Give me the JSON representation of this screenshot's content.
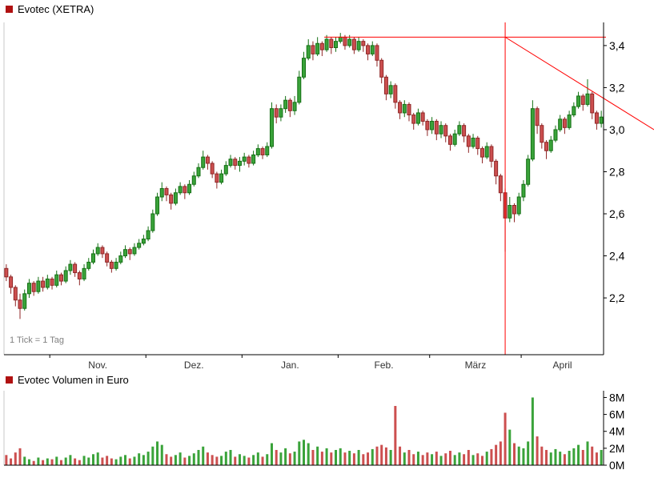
{
  "price_chart": {
    "title": "Evotec (XETRA)",
    "tick_note": "1 Tick = 1 Tag"
  },
  "volume_chart": {
    "title": "Evotec Volumen in Euro"
  },
  "colors": {
    "up_fill": "#3aa33a",
    "up_border": "#147014",
    "down_fill": "#cc4f4f",
    "down_border": "#8f2626",
    "trendline": "#ff0000",
    "axis": "#000000",
    "tick_label": "#000000",
    "month_label": "#333333",
    "note": "#808080",
    "legend_bullet": "#b01111",
    "frame": "#c8c8c8"
  },
  "chart_data": {
    "type": "candlestick",
    "title": "Evotec (XETRA)",
    "tick_note": "1 Tick = 1 Tag",
    "price_axis": {
      "side": "right",
      "min": 1.93,
      "max": 3.51,
      "ticks": [
        {
          "label": "3,4",
          "value": 3.4
        },
        {
          "label": "3,2",
          "value": 3.2
        },
        {
          "label": "3,0",
          "value": 3.0
        },
        {
          "label": "2,8",
          "value": 2.8
        },
        {
          "label": "2,6",
          "value": 2.6
        },
        {
          "label": "2,4",
          "value": 2.4
        },
        {
          "label": "2,2",
          "value": 2.2
        }
      ]
    },
    "months": [
      {
        "label": "Nov.",
        "start_index": 10
      },
      {
        "label": "Dez.",
        "start_index": 31
      },
      {
        "label": "Jan.",
        "start_index": 52
      },
      {
        "label": "Feb.",
        "start_index": 73
      },
      {
        "label": "März",
        "start_index": 93
      },
      {
        "label": "April",
        "start_index": 113
      }
    ],
    "candles": [
      [
        2.34,
        2.36,
        2.28,
        2.3
      ],
      [
        2.3,
        2.31,
        2.22,
        2.25
      ],
      [
        2.25,
        2.26,
        2.16,
        2.19
      ],
      [
        2.19,
        2.22,
        2.1,
        2.15
      ],
      [
        2.15,
        2.24,
        2.14,
        2.22
      ],
      [
        2.22,
        2.29,
        2.2,
        2.27
      ],
      [
        2.27,
        2.28,
        2.21,
        2.23
      ],
      [
        2.23,
        2.3,
        2.22,
        2.28
      ],
      [
        2.28,
        2.3,
        2.23,
        2.25
      ],
      [
        2.25,
        2.31,
        2.24,
        2.29
      ],
      [
        2.29,
        2.3,
        2.24,
        2.26
      ],
      [
        2.26,
        2.33,
        2.25,
        2.31
      ],
      [
        2.31,
        2.32,
        2.26,
        2.28
      ],
      [
        2.28,
        2.35,
        2.27,
        2.33
      ],
      [
        2.33,
        2.38,
        2.31,
        2.36
      ],
      [
        2.36,
        2.37,
        2.3,
        2.32
      ],
      [
        2.32,
        2.33,
        2.26,
        2.29
      ],
      [
        2.29,
        2.36,
        2.28,
        2.34
      ],
      [
        2.34,
        2.39,
        2.33,
        2.37
      ],
      [
        2.37,
        2.43,
        2.36,
        2.41
      ],
      [
        2.41,
        2.46,
        2.4,
        2.44
      ],
      [
        2.44,
        2.45,
        2.39,
        2.41
      ],
      [
        2.41,
        2.42,
        2.35,
        2.37
      ],
      [
        2.37,
        2.38,
        2.32,
        2.34
      ],
      [
        2.34,
        2.39,
        2.33,
        2.37
      ],
      [
        2.37,
        2.42,
        2.36,
        2.4
      ],
      [
        2.4,
        2.45,
        2.39,
        2.43
      ],
      [
        2.43,
        2.44,
        2.38,
        2.41
      ],
      [
        2.41,
        2.46,
        2.4,
        2.44
      ],
      [
        2.44,
        2.48,
        2.43,
        2.46
      ],
      [
        2.46,
        2.5,
        2.45,
        2.48
      ],
      [
        2.48,
        2.54,
        2.47,
        2.52
      ],
      [
        2.52,
        2.62,
        2.51,
        2.6
      ],
      [
        2.6,
        2.7,
        2.59,
        2.68
      ],
      [
        2.68,
        2.75,
        2.66,
        2.72
      ],
      [
        2.72,
        2.73,
        2.66,
        2.69
      ],
      [
        2.69,
        2.7,
        2.62,
        2.65
      ],
      [
        2.65,
        2.72,
        2.64,
        2.7
      ],
      [
        2.7,
        2.75,
        2.69,
        2.73
      ],
      [
        2.73,
        2.74,
        2.67,
        2.7
      ],
      [
        2.7,
        2.76,
        2.69,
        2.74
      ],
      [
        2.74,
        2.8,
        2.73,
        2.78
      ],
      [
        2.78,
        2.84,
        2.77,
        2.82
      ],
      [
        2.82,
        2.9,
        2.81,
        2.87
      ],
      [
        2.87,
        2.88,
        2.81,
        2.84
      ],
      [
        2.84,
        2.85,
        2.77,
        2.79
      ],
      [
        2.79,
        2.8,
        2.72,
        2.75
      ],
      [
        2.75,
        2.81,
        2.74,
        2.79
      ],
      [
        2.79,
        2.85,
        2.78,
        2.83
      ],
      [
        2.83,
        2.88,
        2.82,
        2.86
      ],
      [
        2.86,
        2.87,
        2.81,
        2.83
      ],
      [
        2.83,
        2.87,
        2.8,
        2.85
      ],
      [
        2.85,
        2.89,
        2.83,
        2.87
      ],
      [
        2.87,
        2.88,
        2.82,
        2.84
      ],
      [
        2.84,
        2.9,
        2.83,
        2.88
      ],
      [
        2.88,
        2.93,
        2.87,
        2.91
      ],
      [
        2.91,
        2.92,
        2.86,
        2.88
      ],
      [
        2.88,
        2.94,
        2.87,
        2.92
      ],
      [
        2.92,
        3.13,
        2.91,
        3.1
      ],
      [
        3.1,
        3.12,
        3.03,
        3.06
      ],
      [
        3.06,
        3.12,
        3.04,
        3.1
      ],
      [
        3.1,
        3.16,
        3.08,
        3.14
      ],
      [
        3.14,
        3.15,
        3.06,
        3.09
      ],
      [
        3.09,
        3.16,
        3.07,
        3.13
      ],
      [
        3.13,
        3.28,
        3.12,
        3.25
      ],
      [
        3.25,
        3.37,
        3.24,
        3.34
      ],
      [
        3.34,
        3.43,
        3.33,
        3.4
      ],
      [
        3.4,
        3.42,
        3.33,
        3.36
      ],
      [
        3.36,
        3.44,
        3.35,
        3.41
      ],
      [
        3.41,
        3.42,
        3.35,
        3.38
      ],
      [
        3.38,
        3.45,
        3.37,
        3.43
      ],
      [
        3.43,
        3.44,
        3.36,
        3.39
      ],
      [
        3.39,
        3.44,
        3.37,
        3.42
      ],
      [
        3.42,
        3.46,
        3.41,
        3.44
      ],
      [
        3.44,
        3.45,
        3.38,
        3.4
      ],
      [
        3.4,
        3.45,
        3.39,
        3.43
      ],
      [
        3.43,
        3.44,
        3.36,
        3.38
      ],
      [
        3.38,
        3.44,
        3.37,
        3.42
      ],
      [
        3.42,
        3.43,
        3.37,
        3.4
      ],
      [
        3.4,
        3.41,
        3.33,
        3.36
      ],
      [
        3.36,
        3.42,
        3.35,
        3.4
      ],
      [
        3.4,
        3.41,
        3.3,
        3.33
      ],
      [
        3.33,
        3.34,
        3.22,
        3.25
      ],
      [
        3.25,
        3.26,
        3.14,
        3.17
      ],
      [
        3.17,
        3.23,
        3.15,
        3.21
      ],
      [
        3.21,
        3.22,
        3.1,
        3.13
      ],
      [
        3.13,
        3.14,
        3.05,
        3.08
      ],
      [
        3.08,
        3.14,
        3.06,
        3.12
      ],
      [
        3.12,
        3.13,
        3.04,
        3.07
      ],
      [
        3.07,
        3.08,
        3.0,
        3.03
      ],
      [
        3.03,
        3.1,
        3.02,
        3.08
      ],
      [
        3.08,
        3.09,
        3.02,
        3.04
      ],
      [
        3.04,
        3.05,
        2.97,
        3.0
      ],
      [
        3.0,
        3.06,
        2.98,
        3.04
      ],
      [
        3.04,
        3.05,
        2.95,
        2.98
      ],
      [
        2.98,
        3.04,
        2.96,
        3.02
      ],
      [
        3.02,
        3.03,
        2.94,
        2.97
      ],
      [
        2.97,
        2.98,
        2.9,
        2.93
      ],
      [
        2.93,
        3.0,
        2.92,
        2.98
      ],
      [
        2.98,
        3.04,
        2.97,
        3.02
      ],
      [
        3.02,
        3.03,
        2.94,
        2.97
      ],
      [
        2.97,
        2.98,
        2.89,
        2.92
      ],
      [
        2.92,
        2.98,
        2.91,
        2.96
      ],
      [
        2.96,
        2.97,
        2.88,
        2.91
      ],
      [
        2.91,
        2.92,
        2.84,
        2.87
      ],
      [
        2.87,
        2.94,
        2.86,
        2.92
      ],
      [
        2.92,
        2.93,
        2.82,
        2.85
      ],
      [
        2.85,
        2.86,
        2.74,
        2.78
      ],
      [
        2.78,
        2.79,
        2.66,
        2.7
      ],
      [
        2.7,
        2.72,
        2.42,
        2.58
      ],
      [
        2.58,
        2.68,
        2.56,
        2.64
      ],
      [
        2.64,
        2.65,
        2.56,
        2.6
      ],
      [
        2.6,
        2.7,
        2.59,
        2.68
      ],
      [
        2.68,
        2.76,
        2.66,
        2.74
      ],
      [
        2.74,
        2.88,
        2.73,
        2.86
      ],
      [
        2.86,
        3.14,
        2.85,
        3.1
      ],
      [
        3.1,
        3.11,
        2.98,
        3.02
      ],
      [
        3.02,
        3.03,
        2.91,
        2.94
      ],
      [
        2.94,
        2.95,
        2.86,
        2.9
      ],
      [
        2.9,
        2.97,
        2.89,
        2.95
      ],
      [
        2.95,
        3.02,
        2.94,
        3.0
      ],
      [
        3.0,
        3.07,
        2.99,
        3.05
      ],
      [
        3.05,
        3.06,
        2.98,
        3.01
      ],
      [
        3.01,
        3.09,
        3.0,
        3.07
      ],
      [
        3.07,
        3.13,
        3.06,
        3.11
      ],
      [
        3.11,
        3.18,
        3.1,
        3.16
      ],
      [
        3.16,
        3.17,
        3.09,
        3.12
      ],
      [
        3.12,
        3.24,
        3.11,
        3.17
      ],
      [
        3.17,
        3.18,
        3.05,
        3.08
      ],
      [
        3.08,
        3.09,
        3.0,
        3.03
      ],
      [
        3.03,
        3.09,
        3.01,
        3.06
      ]
    ],
    "volume": {
      "title": "Evotec Volumen in Euro",
      "unit": "EUR",
      "axis": {
        "min": 0,
        "max": 8.8,
        "ticks": [
          {
            "label": "8M",
            "value": 8
          },
          {
            "label": "6M",
            "value": 6
          },
          {
            "label": "4M",
            "value": 4
          },
          {
            "label": "2M",
            "value": 2
          },
          {
            "label": "0M",
            "value": 0
          }
        ]
      },
      "values": [
        1.2,
        0.8,
        1.5,
        2.0,
        1.0,
        0.7,
        0.5,
        0.9,
        0.6,
        0.8,
        0.7,
        1.0,
        0.6,
        0.9,
        1.2,
        0.8,
        0.6,
        1.1,
        0.9,
        1.3,
        1.5,
        0.9,
        1.1,
        0.8,
        0.7,
        1.0,
        1.2,
        0.8,
        1.0,
        1.4,
        1.2,
        1.6,
        2.2,
        2.8,
        2.4,
        1.3,
        1.0,
        1.2,
        1.5,
        0.9,
        1.1,
        1.4,
        1.8,
        2.2,
        1.5,
        1.2,
        1.0,
        1.1,
        1.6,
        1.8,
        1.0,
        1.3,
        1.1,
        0.9,
        1.2,
        1.5,
        1.0,
        1.3,
        2.6,
        1.8,
        1.5,
        2.0,
        1.4,
        1.6,
        2.8,
        3.0,
        2.6,
        1.8,
        2.2,
        1.6,
        2.0,
        1.5,
        1.8,
        2.0,
        1.5,
        1.7,
        1.4,
        1.8,
        1.3,
        1.5,
        1.9,
        2.2,
        2.4,
        2.1,
        1.8,
        7.0,
        2.2,
        1.5,
        1.8,
        1.3,
        1.6,
        1.2,
        1.5,
        1.3,
        1.6,
        1.1,
        1.4,
        1.7,
        1.2,
        1.5,
        1.3,
        1.8,
        1.2,
        1.4,
        1.1,
        1.6,
        1.9,
        2.4,
        2.8,
        6.2,
        4.2,
        2.6,
        2.2,
        2.0,
        2.8,
        8.0,
        3.4,
        2.2,
        1.8,
        1.5,
        1.9,
        1.6,
        1.3,
        1.7,
        2.0,
        2.4,
        1.8,
        2.8,
        2.2,
        1.5,
        1.8
      ]
    },
    "trendlines": [
      {
        "type": "horizontal",
        "price": 3.44,
        "from_index": 70
      },
      {
        "type": "vertical",
        "index": 109
      },
      {
        "type": "diagonal",
        "from_index": 109,
        "from_price": 3.44,
        "to_image_right_price": 3.0
      }
    ]
  }
}
